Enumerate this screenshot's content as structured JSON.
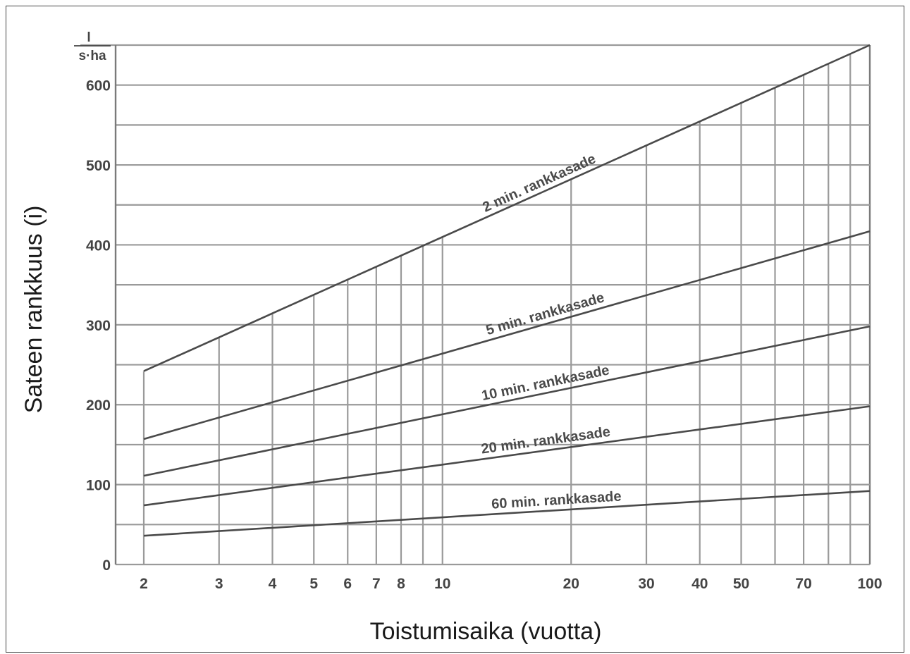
{
  "chart_data": {
    "type": "line",
    "title": "",
    "xlabel": "Toistumisaika (vuotta)",
    "ylabel": "Sateen rankkuus (i)",
    "y_unit": {
      "numerator": "l",
      "denominator": "s·ha"
    },
    "x_scale": "log",
    "xlim": [
      2,
      100
    ],
    "ylim": [
      0,
      650
    ],
    "x_ticks": [
      2,
      3,
      4,
      5,
      6,
      7,
      8,
      10,
      20,
      30,
      40,
      50,
      70,
      100
    ],
    "x_gridlines": [
      2,
      3,
      4,
      5,
      6,
      7,
      8,
      9,
      10,
      20,
      30,
      40,
      50,
      60,
      70,
      80,
      90,
      100
    ],
    "y_ticks": [
      0,
      100,
      200,
      300,
      400,
      500,
      600
    ],
    "y_gridlines": [
      0,
      50,
      100,
      150,
      200,
      250,
      300,
      350,
      400,
      450,
      500,
      550,
      600,
      650
    ],
    "grid": true,
    "colors": {
      "grid": "#9a9a9a",
      "series": "#4a4a4a",
      "text": "#444444"
    },
    "series": [
      {
        "name": "2 min. rankkasade",
        "x": [
          2,
          100
        ],
        "y": [
          242,
          650
        ]
      },
      {
        "name": "5 min. rankkasade",
        "x": [
          2,
          100
        ],
        "y": [
          157,
          417
        ]
      },
      {
        "name": "10 min. rankkasade",
        "x": [
          2,
          100
        ],
        "y": [
          111,
          298
        ]
      },
      {
        "name": "20 min. rankkasade",
        "x": [
          2,
          100
        ],
        "y": [
          74,
          198
        ]
      },
      {
        "name": "60 min. rankkasade",
        "x": [
          2,
          100
        ],
        "y": [
          36,
          92
        ]
      }
    ]
  }
}
